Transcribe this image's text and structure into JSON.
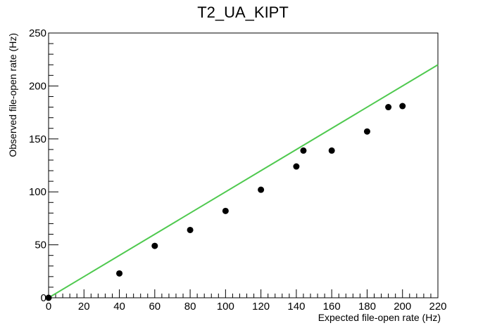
{
  "chart_data": {
    "type": "scatter",
    "title": "T2_UA_KIPT",
    "xlabel": "Expected file-open rate (Hz)",
    "ylabel": "Observed file-open rate (Hz)",
    "xlim": [
      0,
      220
    ],
    "ylim": [
      0,
      250
    ],
    "x_ticks": [
      0,
      20,
      40,
      60,
      80,
      100,
      120,
      140,
      160,
      180,
      200,
      220
    ],
    "y_ticks": [
      0,
      50,
      100,
      150,
      200,
      250
    ],
    "grid": false,
    "series": [
      {
        "x": [
          0,
          40,
          60,
          80,
          100,
          120,
          140,
          144,
          160,
          180,
          192,
          200
        ],
        "y": [
          0,
          23,
          49,
          64,
          82,
          102,
          124,
          139,
          139,
          157,
          180,
          181
        ],
        "color": "#000000",
        "marker": "circle"
      }
    ],
    "reference_line": {
      "x": [
        0,
        220
      ],
      "y": [
        0,
        220
      ],
      "color": "#4fc94f"
    }
  }
}
